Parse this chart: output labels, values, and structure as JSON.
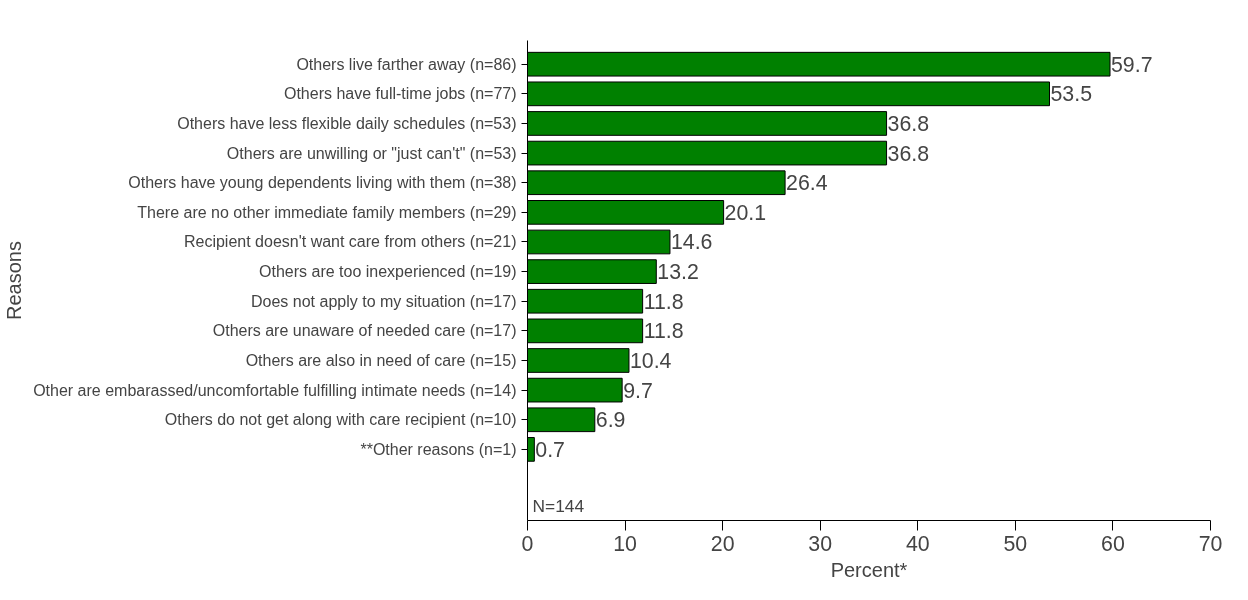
{
  "chart_data": {
    "type": "bar",
    "orientation": "horizontal",
    "xlabel": "Percent*",
    "ylabel": "Reasons",
    "categories": [
      "Others live farther away (n=86)",
      "Others have full-time jobs (n=77)",
      "Others have less flexible daily schedules (n=53)",
      "Others are unwilling or \"just can't\" (n=53)",
      "Others have young dependents living with them (n=38)",
      "There are no other immediate family members (n=29)",
      "Recipient doesn't want care from others (n=21)",
      "Others are too inexperienced (n=19)",
      "Does not apply to my situation (n=17)",
      "Others are unaware of needed care (n=17)",
      "Others are also in need of care (n=15)",
      "Other are embarassed/uncomfortable fulfilling intimate needs (n=14)",
      "Others do not get along with care recipient (n=10)",
      "**Other reasons (n=1)"
    ],
    "values": [
      59.7,
      53.5,
      36.8,
      36.8,
      26.4,
      20.1,
      14.6,
      13.2,
      11.8,
      11.8,
      10.4,
      9.7,
      6.9,
      0.7
    ],
    "color": "#008000",
    "data_labels": true,
    "xlim": [
      0,
      70
    ],
    "xticks": [
      0,
      10,
      20,
      30,
      40,
      50,
      60,
      70
    ],
    "grid": false,
    "annotations": [
      "N=144"
    ]
  }
}
